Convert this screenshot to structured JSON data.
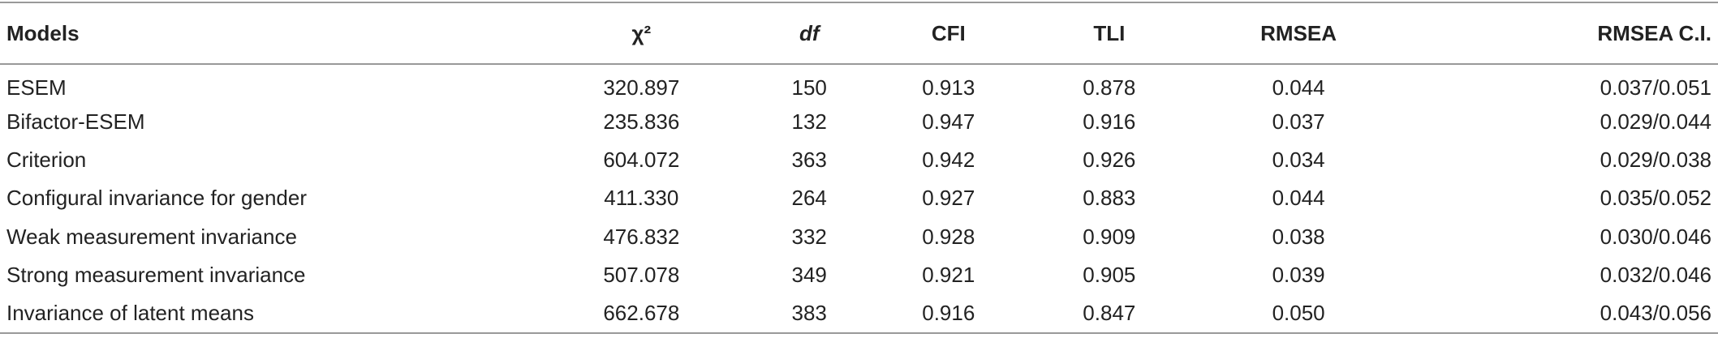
{
  "table": {
    "header": [
      "Models",
      "χ²",
      "df",
      "CFI",
      "TLI",
      "RMSEA",
      "RMSEA C.I."
    ],
    "rows": [
      [
        "ESEM",
        "320.897",
        "150",
        "0.913",
        "0.878",
        "0.044",
        "0.037/0.051"
      ],
      [
        "Bifactor-ESEM",
        "235.836",
        "132",
        "0.947",
        "0.916",
        "0.037",
        "0.029/0.044"
      ],
      [
        "Criterion",
        "604.072",
        "363",
        "0.942",
        "0.926",
        "0.034",
        "0.029/0.038"
      ],
      [
        "Configural invariance for gender",
        "411.330",
        "264",
        "0.927",
        "0.883",
        "0.044",
        "0.035/0.052"
      ],
      [
        "Weak measurement invariance",
        "476.832",
        "332",
        "0.928",
        "0.909",
        "0.038",
        "0.030/0.046"
      ],
      [
        "Strong measurement invariance",
        "507.078",
        "349",
        "0.921",
        "0.905",
        "0.039",
        "0.032/0.046"
      ],
      [
        "Invariance of latent means",
        "662.678",
        "383",
        "0.916",
        "0.847",
        "0.050",
        "0.043/0.056"
      ]
    ]
  }
}
